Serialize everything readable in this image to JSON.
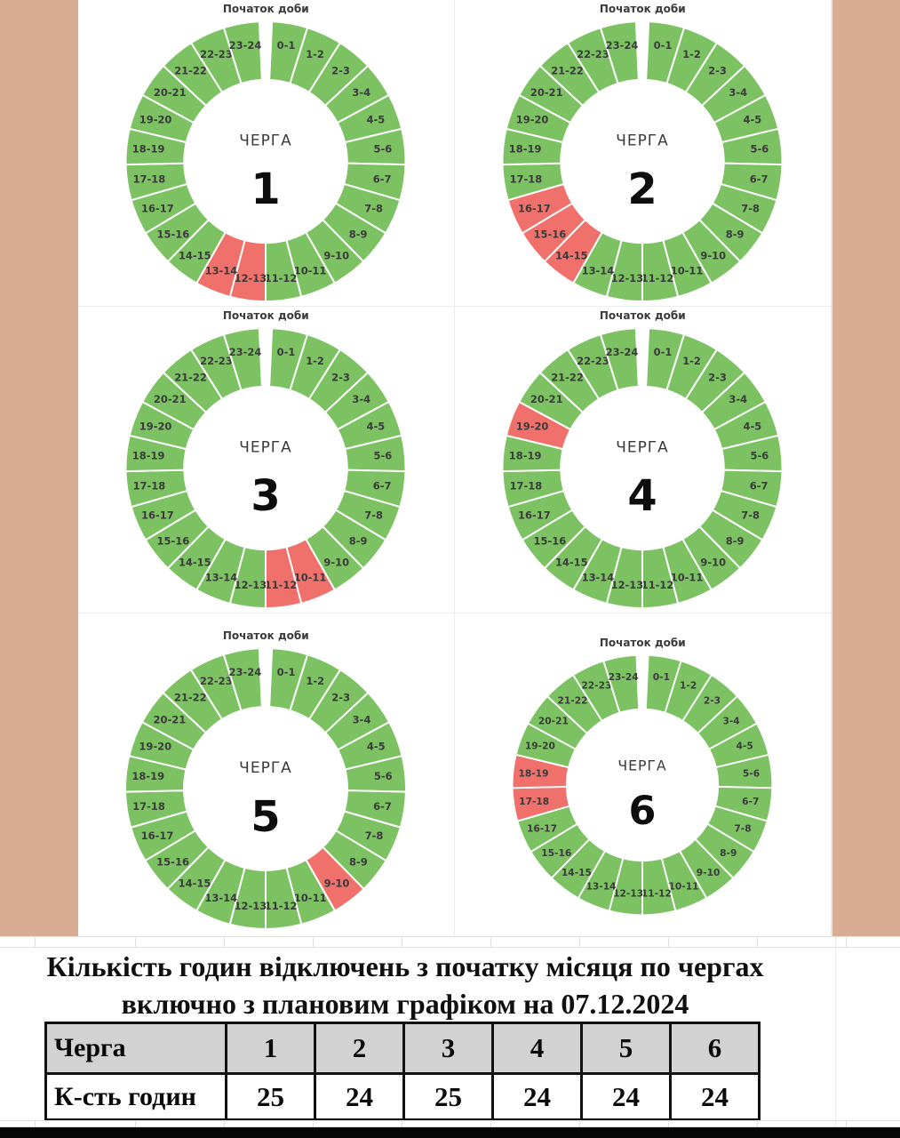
{
  "page": {
    "background": "#ffffff",
    "margin_color": "#d9ad94",
    "gridline_color": "#ececec",
    "bottom_bar_color": "#050505"
  },
  "chart_data": {
    "type": "pie",
    "per_chart_title": "Початок доби",
    "center_label": "ЧЕРГА",
    "hour_categories": [
      "0-1",
      "1-2",
      "2-3",
      "3-4",
      "4-5",
      "5-6",
      "6-7",
      "7-8",
      "8-9",
      "9-10",
      "10-11",
      "11-12",
      "12-13",
      "13-14",
      "14-15",
      "15-16",
      "16-17",
      "17-18",
      "18-19",
      "19-20",
      "20-21",
      "21-22",
      "22-23",
      "23-24"
    ],
    "value_per_slice": 1,
    "colors": {
      "normal": "#7cc262",
      "outage": "#f0706b"
    },
    "charts": [
      {
        "queue": "1",
        "outage_hours": [
          "12-13",
          "13-14"
        ]
      },
      {
        "queue": "2",
        "outage_hours": [
          "14-15",
          "15-16",
          "16-17"
        ]
      },
      {
        "queue": "3",
        "outage_hours": [
          "10-11",
          "11-12"
        ]
      },
      {
        "queue": "4",
        "outage_hours": [
          "19-20"
        ]
      },
      {
        "queue": "5",
        "outage_hours": [
          "9-10"
        ]
      },
      {
        "queue": "6",
        "outage_hours": [
          "17-18",
          "18-19"
        ]
      }
    ]
  },
  "summary_table": {
    "title_line1": "Кількість годин відключень з початку місяця по чергах",
    "title_line2": "включно з плановим графіком на 07.12.2024",
    "header_fill": "#d2d2d2",
    "rows": [
      {
        "label": "Черга",
        "values": [
          "1",
          "2",
          "3",
          "4",
          "5",
          "6"
        ]
      },
      {
        "label": "К-сть годин",
        "values": [
          "25",
          "24",
          "25",
          "24",
          "24",
          "24"
        ]
      }
    ]
  }
}
